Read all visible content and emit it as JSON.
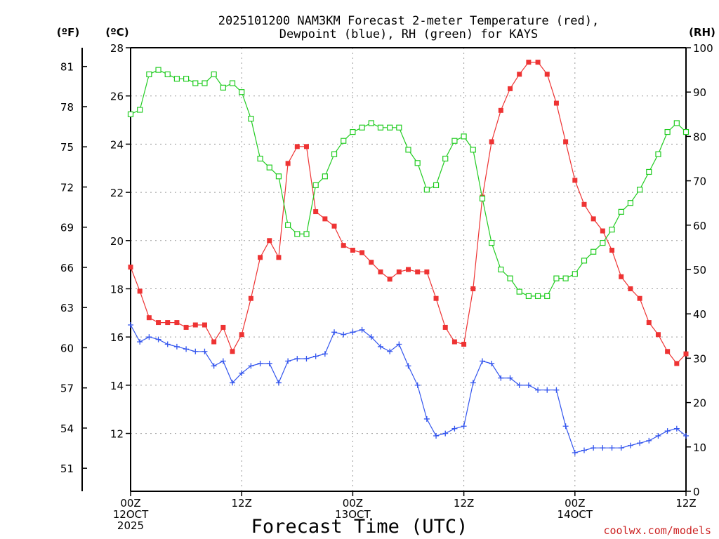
{
  "chart_data": {
    "type": "line",
    "title_lines": [
      "2025101200 NAM3KM Forecast 2-meter Temperature (red),",
      "Dewpoint (blue), RH (green) for KAYS"
    ],
    "left_outer_unit": "(ºF)",
    "left_inner_unit": "(ºC)",
    "right_unit": "(RH)",
    "xlabel": "Forecast Time (UTC)",
    "credit": "coolwx.com/models",
    "x_range_hours": [
      0,
      60
    ],
    "x_ticks": [
      {
        "hour": 0,
        "lines": [
          "00Z",
          "12OCT",
          "2025"
        ]
      },
      {
        "hour": 12,
        "lines": [
          "12Z"
        ]
      },
      {
        "hour": 24,
        "lines": [
          "00Z",
          "13OCT"
        ]
      },
      {
        "hour": 36,
        "lines": [
          "12Z"
        ]
      },
      {
        "hour": 48,
        "lines": [
          "00Z",
          "14OCT"
        ]
      },
      {
        "hour": 60,
        "lines": [
          "12Z"
        ]
      }
    ],
    "c_range": [
      9.6,
      28.0
    ],
    "c_ticks": [
      "12",
      "14",
      "16",
      "18",
      "20",
      "22",
      "24",
      "26",
      "28"
    ],
    "f_ticks": [
      "51",
      "54",
      "57",
      "60",
      "63",
      "66",
      "69",
      "72",
      "75",
      "78",
      "81"
    ],
    "rh_range": [
      0,
      100
    ],
    "rh_ticks": [
      "0",
      "10",
      "20",
      "30",
      "40",
      "50",
      "60",
      "70",
      "80",
      "90",
      "100"
    ],
    "series": [
      {
        "name": "Temperature",
        "unit": "C",
        "color": "#ee3333",
        "marker": "filled-square",
        "values": [
          18.9,
          17.9,
          16.8,
          16.6,
          16.6,
          16.6,
          16.4,
          16.5,
          16.5,
          15.8,
          16.4,
          15.4,
          16.1,
          17.6,
          19.3,
          20.0,
          19.3,
          23.2,
          23.9,
          23.9,
          21.2,
          20.9,
          20.6,
          19.8,
          19.6,
          19.5,
          19.1,
          18.7,
          18.4,
          18.7,
          18.8,
          18.7,
          18.7,
          17.6,
          16.4,
          15.8,
          15.7,
          18.0,
          21.8,
          24.1,
          25.4,
          26.3,
          26.9,
          27.4,
          27.4,
          26.9,
          25.7,
          24.1,
          22.5,
          21.5,
          20.9,
          20.4,
          19.6,
          18.5,
          18.0,
          17.6,
          16.6,
          16.1,
          15.4,
          14.9,
          15.3
        ]
      },
      {
        "name": "Dewpoint",
        "unit": "C",
        "color": "#3355ee",
        "marker": "plus",
        "values": [
          16.5,
          15.8,
          16.0,
          15.9,
          15.7,
          15.6,
          15.5,
          15.4,
          15.4,
          14.8,
          15.0,
          14.1,
          14.5,
          14.8,
          14.9,
          14.9,
          14.1,
          15.0,
          15.1,
          15.1,
          15.2,
          15.3,
          16.2,
          16.1,
          16.2,
          16.3,
          16.0,
          15.6,
          15.4,
          15.7,
          14.8,
          14.0,
          12.6,
          11.9,
          12.0,
          12.2,
          12.3,
          14.1,
          15.0,
          14.9,
          14.3,
          14.3,
          14.0,
          14.0,
          13.8,
          13.8,
          13.8,
          12.3,
          11.2,
          11.3,
          11.4,
          11.4,
          11.4,
          11.4,
          11.5,
          11.6,
          11.7,
          11.9,
          12.1,
          12.2,
          11.9
        ]
      },
      {
        "name": "RH",
        "unit": "%",
        "color": "#22cc22",
        "marker": "open-square",
        "values": [
          85,
          86,
          94,
          95,
          94,
          93,
          93,
          92,
          92,
          94,
          91,
          92,
          90,
          84,
          75,
          73,
          71,
          60,
          58,
          58,
          69,
          71,
          76,
          79,
          81,
          82,
          83,
          82,
          82,
          82,
          77,
          74,
          68,
          69,
          75,
          79,
          80,
          77,
          66,
          56,
          50,
          48,
          45,
          44,
          44,
          44,
          48,
          48,
          49,
          52,
          54,
          56,
          59,
          63,
          65,
          68,
          72,
          76,
          81,
          83,
          81
        ]
      }
    ]
  }
}
